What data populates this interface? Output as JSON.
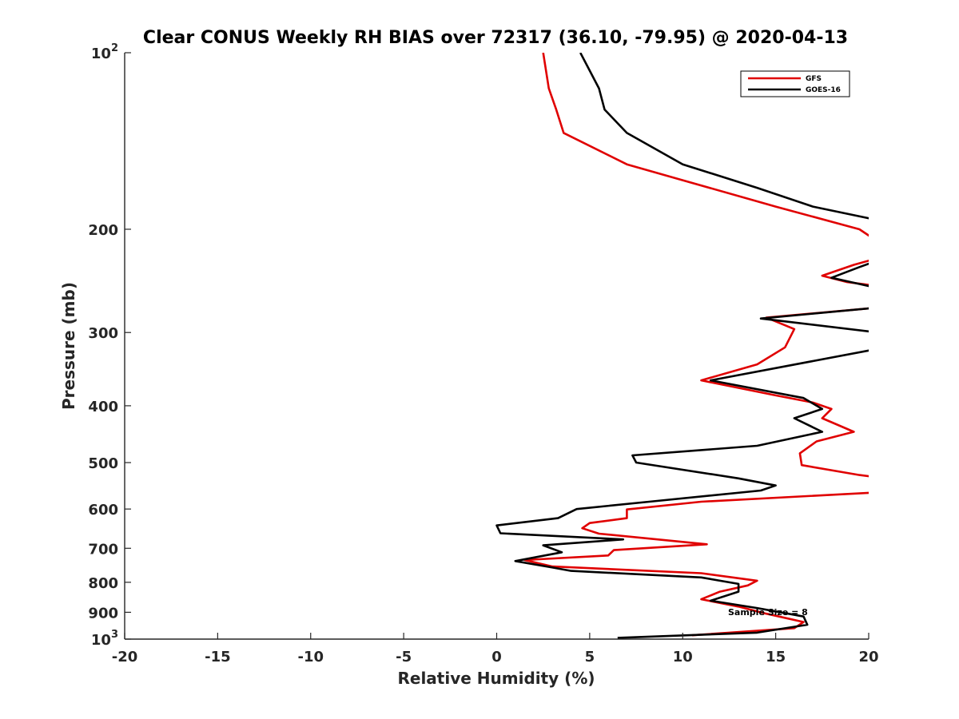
{
  "chart_data": {
    "type": "line",
    "title": "Clear CONUS Weekly RH BIAS over 72317 (36.10, -79.95) @ 2020-04-13",
    "xlabel": "Relative Humidity (%)",
    "ylabel": "Pressure (mb)",
    "xlim": [
      -20,
      20
    ],
    "ylim": [
      100,
      1000
    ],
    "yscale": "log",
    "y_reversed": true,
    "grid": false,
    "legend_position": "top-right",
    "x_ticks": [
      -20,
      -15,
      -10,
      -5,
      0,
      5,
      10,
      15,
      20
    ],
    "x_tick_labels": [
      "-20",
      "-15",
      "-10",
      "-5",
      "0",
      "5",
      "10",
      "15",
      "20"
    ],
    "y_ticks": [
      100,
      200,
      300,
      400,
      500,
      600,
      700,
      800,
      900,
      1000
    ],
    "y_tick_labels": [
      {
        "base": "10",
        "exp": "2"
      },
      {
        "base": "200",
        "exp": ""
      },
      {
        "base": "300",
        "exp": ""
      },
      {
        "base": "400",
        "exp": ""
      },
      {
        "base": "500",
        "exp": ""
      },
      {
        "base": "600",
        "exp": ""
      },
      {
        "base": "700",
        "exp": ""
      },
      {
        "base": "800",
        "exp": ""
      },
      {
        "base": "900",
        "exp": ""
      },
      {
        "base": "10",
        "exp": "3"
      }
    ],
    "annotation": "Sample Size = 8",
    "series": [
      {
        "name": "GFS",
        "color": "#e00000",
        "points": [
          [
            2.5,
            100
          ],
          [
            2.8,
            115
          ],
          [
            3.2,
            125
          ],
          [
            3.6,
            137
          ],
          [
            7.0,
            155
          ],
          [
            10.0,
            165
          ],
          [
            15.0,
            183
          ],
          [
            19.5,
            200
          ],
          [
            20.5,
            210
          ],
          [
            20.5,
            224
          ],
          [
            19.2,
            230
          ],
          [
            17.5,
            240
          ],
          [
            18.8,
            246
          ],
          [
            20.5,
            250
          ],
          [
            20.5,
            272
          ],
          [
            14.5,
            283
          ],
          [
            16.0,
            296
          ],
          [
            15.5,
            318
          ],
          [
            14.0,
            340
          ],
          [
            11.0,
            362
          ],
          [
            15.0,
            384
          ],
          [
            17.0,
            395
          ],
          [
            18.0,
            405
          ],
          [
            17.5,
            420
          ],
          [
            19.2,
            443
          ],
          [
            17.2,
            460
          ],
          [
            16.3,
            482
          ],
          [
            16.4,
            505
          ],
          [
            19.5,
            525
          ],
          [
            20.5,
            530
          ],
          [
            20.5,
            562
          ],
          [
            11.0,
            583
          ],
          [
            7.0,
            601
          ],
          [
            7.0,
            622
          ],
          [
            5.0,
            634
          ],
          [
            4.6,
            647
          ],
          [
            5.5,
            661
          ],
          [
            11.3,
            689
          ],
          [
            6.3,
            705
          ],
          [
            6.0,
            720
          ],
          [
            1.5,
            733
          ],
          [
            3.0,
            752
          ],
          [
            11.0,
            772
          ],
          [
            14.0,
            795
          ],
          [
            13.5,
            810
          ],
          [
            12.0,
            830
          ],
          [
            11.0,
            855
          ],
          [
            13.0,
            880
          ],
          [
            14.5,
            905
          ],
          [
            16.5,
            935
          ],
          [
            16.0,
            958
          ],
          [
            10.5,
            985
          ]
        ]
      },
      {
        "name": "GOES-16",
        "color": "#000000",
        "points": [
          [
            4.5,
            100
          ],
          [
            5.5,
            115
          ],
          [
            5.8,
            125
          ],
          [
            7.0,
            137
          ],
          [
            10.0,
            155
          ],
          [
            14.0,
            170
          ],
          [
            17.0,
            183
          ],
          [
            20.5,
            193
          ],
          [
            20.5,
            226
          ],
          [
            19.5,
            232
          ],
          [
            18.0,
            242
          ],
          [
            19.0,
            246
          ],
          [
            20.5,
            252
          ],
          [
            20.5,
            272
          ],
          [
            14.2,
            284
          ],
          [
            20.5,
            300
          ],
          [
            20.5,
            316
          ],
          [
            20.0,
            322
          ],
          [
            11.5,
            362
          ],
          [
            16.5,
            388
          ],
          [
            17.5,
            405
          ],
          [
            16.0,
            420
          ],
          [
            17.5,
            443
          ],
          [
            14.0,
            468
          ],
          [
            7.3,
            486
          ],
          [
            7.5,
            500
          ],
          [
            13.0,
            532
          ],
          [
            15.0,
            547
          ],
          [
            14.2,
            558
          ],
          [
            8.2,
            583
          ],
          [
            4.3,
            600
          ],
          [
            3.3,
            622
          ],
          [
            0.0,
            640
          ],
          [
            0.2,
            660
          ],
          [
            6.8,
            676
          ],
          [
            2.5,
            692
          ],
          [
            3.5,
            711
          ],
          [
            1.0,
            736
          ],
          [
            3.0,
            755
          ],
          [
            4.0,
            765
          ],
          [
            11.0,
            785
          ],
          [
            13.0,
            805
          ],
          [
            13.0,
            830
          ],
          [
            11.5,
            860
          ],
          [
            14.0,
            885
          ],
          [
            16.5,
            915
          ],
          [
            16.7,
            945
          ],
          [
            14.0,
            975
          ],
          [
            6.5,
            995
          ]
        ]
      }
    ]
  }
}
